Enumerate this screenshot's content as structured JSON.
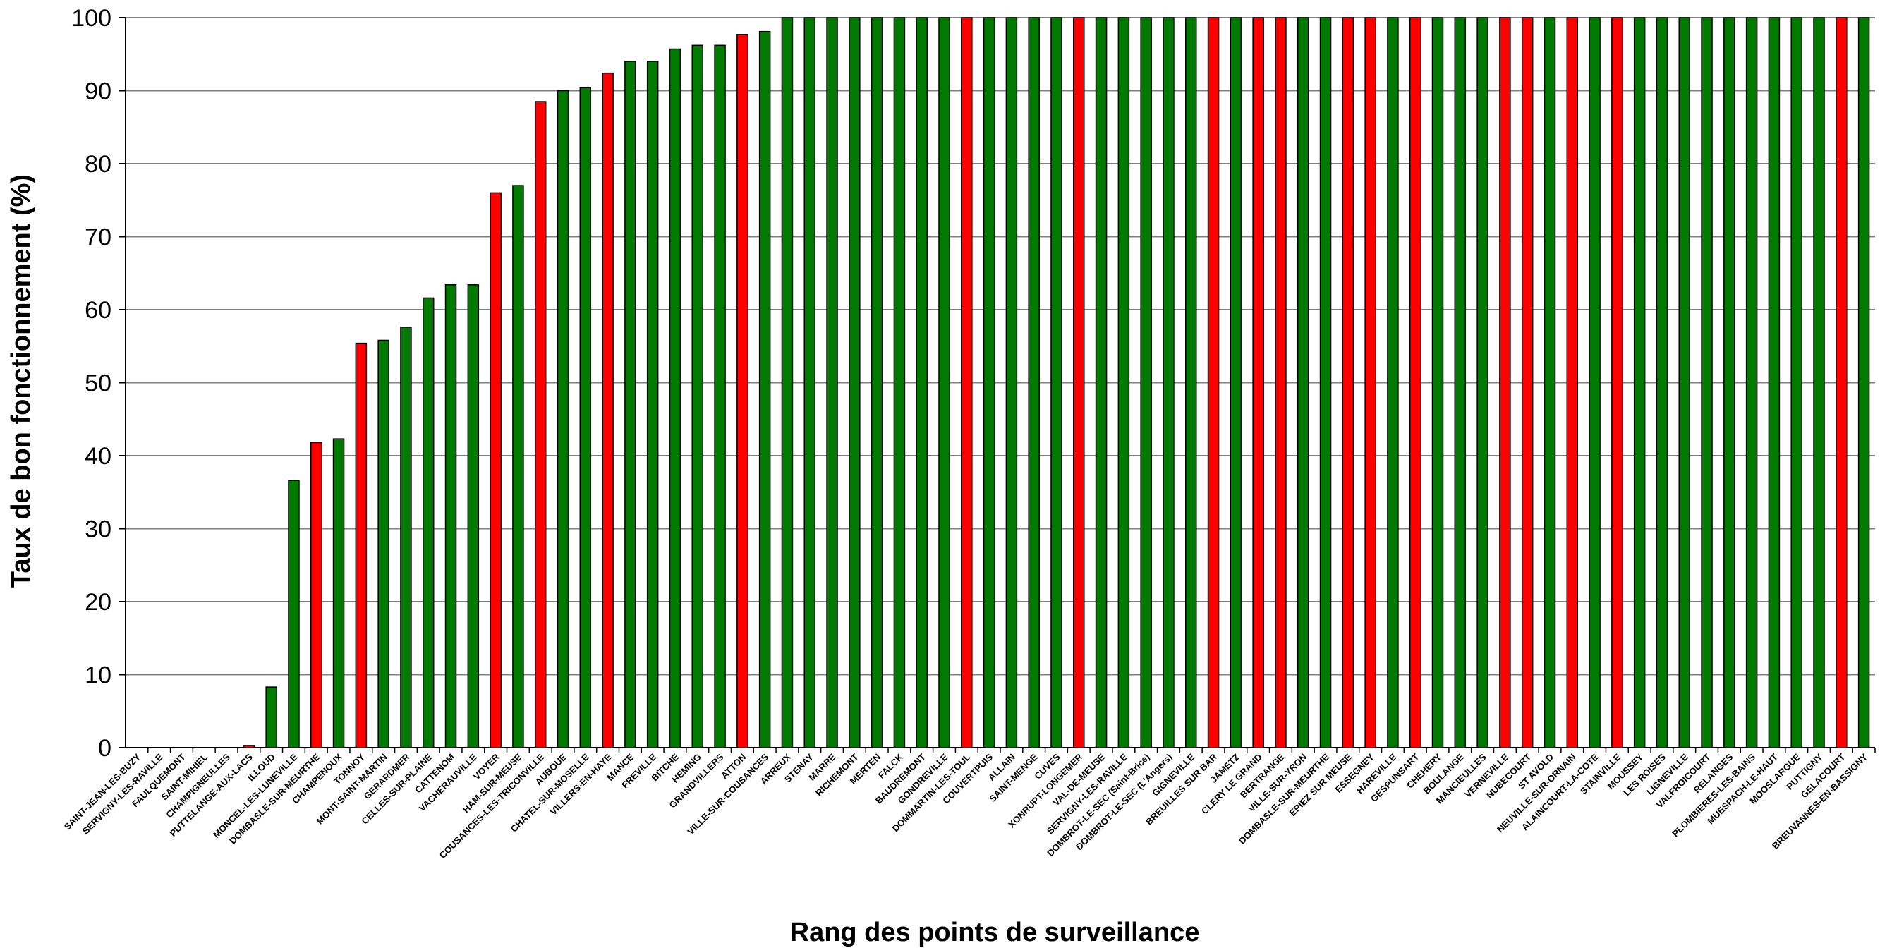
{
  "chart_data": {
    "type": "bar",
    "title": "",
    "xlabel": "Rang des points de surveillance",
    "ylabel": "Taux de bon fonctionnement (%)",
    "ylim": [
      0,
      100
    ],
    "yticks": [
      0,
      10,
      20,
      30,
      40,
      50,
      60,
      70,
      80,
      90,
      100
    ],
    "grid": true,
    "legend": "none",
    "colors": {
      "green": "#007a00",
      "red": "#ff0000",
      "grid": "#808080",
      "axis": "#000000"
    },
    "categories": [
      "SAINT-JEAN-LES-BUZY",
      "SERVIGNY-LES-RAVILLE",
      "FAULQUEMONT",
      "SAINT-MIHIEL",
      "CHAMPIGNEULLES",
      "PUTTELANGE-AUX-LACS",
      "ILLOUD",
      "MONCEL-LES-LUNEVILLE",
      "DOMBASLE-SUR-MEURTHE",
      "CHAMPENOUX",
      "TONNOY",
      "MONT-SAINT-MARTIN",
      "GERARDMER",
      "CELLES-SUR-PLAINE",
      "CATTENOM",
      "VACHERAUVILLE",
      "VOYER",
      "HAM-SUR-MEUSE",
      "COUSANCES-LES-TRICONVILLE",
      "AUBOUE",
      "CHATEL-SUR-MOSELLE",
      "VILLERS-EN-HAYE",
      "MANCE",
      "FREVILLE",
      "BITCHE",
      "HEMING",
      "GRANDVILLERS",
      "ATTON",
      "VILLE-SUR-COUSANCES",
      "ARREUX",
      "STENAY",
      "MARRE",
      "RICHEMONT",
      "MERTEN",
      "FALCK",
      "BAUDREMONT",
      "GONDREVILLE",
      "DOMMARTIN-LES-TOUL",
      "COUVERTPUIS",
      "ALLAIN",
      "SAINT-MENGE",
      "CUVES",
      "XONRUPT-LONGEMER",
      "VAL-DE-MEUSE",
      "SERVIGNY-LES-RAVILLE",
      "DOMBROT-LE-SEC (Saint-Brice)",
      "DOMBROT-LE-SEC (L'Angers)",
      "GIGNEVILLE",
      "BREUILLES SUR BAR",
      "JAMETZ",
      "CLERY LE GRAND",
      "BERTRANGE",
      "VILLE-SUR-YRON",
      "DOMBASLE-SUR-MEURTHE",
      "EPIEZ SUR MEUSE",
      "ESSEGNEY",
      "HAREVILLE",
      "GESPUNSART",
      "CHEHERY",
      "BOULANGE",
      "MANCIEULLES",
      "VERNEVILLE",
      "NUBECOURT",
      "ST AVOLD",
      "NEUVILLE-SUR-ORNAIN",
      "ALAINCOURT-LA-COTE",
      "STAINVILLE",
      "MOUSSEY",
      "LES ROISES",
      "LIGNEVILLE",
      "VALFROICOURT",
      "RELANGES",
      "PLOMBIERES-LES-BAINS",
      "MUESPACH-LE-HAUT",
      "MOOSLARGUE",
      "PUTTIGNY",
      "GELACOURT",
      "BREUVANNES-EN-BASSIGNY"
    ],
    "values": [
      0,
      0,
      0,
      0,
      0,
      0.3,
      8.3,
      36.6,
      41.8,
      42.3,
      55.4,
      55.8,
      57.6,
      61.6,
      63.4,
      63.4,
      76,
      77,
      88.5,
      90,
      90.4,
      92.4,
      94,
      94,
      95.7,
      96.2,
      96.2,
      97.7,
      98.1,
      100,
      100,
      100,
      100,
      100,
      100,
      100,
      100,
      100,
      100,
      100,
      100,
      100,
      100,
      100,
      100,
      100,
      100,
      100,
      100,
      100,
      100,
      100,
      100,
      100,
      100,
      100,
      100,
      100,
      100,
      100,
      100,
      100,
      100,
      100,
      100,
      100,
      100,
      100,
      100,
      100,
      100,
      100,
      100,
      100,
      100,
      100,
      100,
      100
    ],
    "bar_colors": [
      "green",
      "green",
      "green",
      "green",
      "green",
      "red",
      "green",
      "green",
      "red",
      "green",
      "red",
      "green",
      "green",
      "green",
      "green",
      "green",
      "red",
      "green",
      "red",
      "green",
      "green",
      "red",
      "green",
      "green",
      "green",
      "green",
      "green",
      "red",
      "green",
      "green",
      "green",
      "green",
      "green",
      "green",
      "green",
      "green",
      "green",
      "red",
      "green",
      "green",
      "green",
      "green",
      "red",
      "green",
      "green",
      "green",
      "green",
      "green",
      "red",
      "green",
      "red",
      "red",
      "green",
      "green",
      "red",
      "red",
      "green",
      "red",
      "green",
      "green",
      "green",
      "red",
      "red",
      "green",
      "red",
      "green",
      "red",
      "green",
      "green",
      "green",
      "green",
      "green",
      "green",
      "green",
      "green",
      "green",
      "red",
      "green"
    ]
  }
}
